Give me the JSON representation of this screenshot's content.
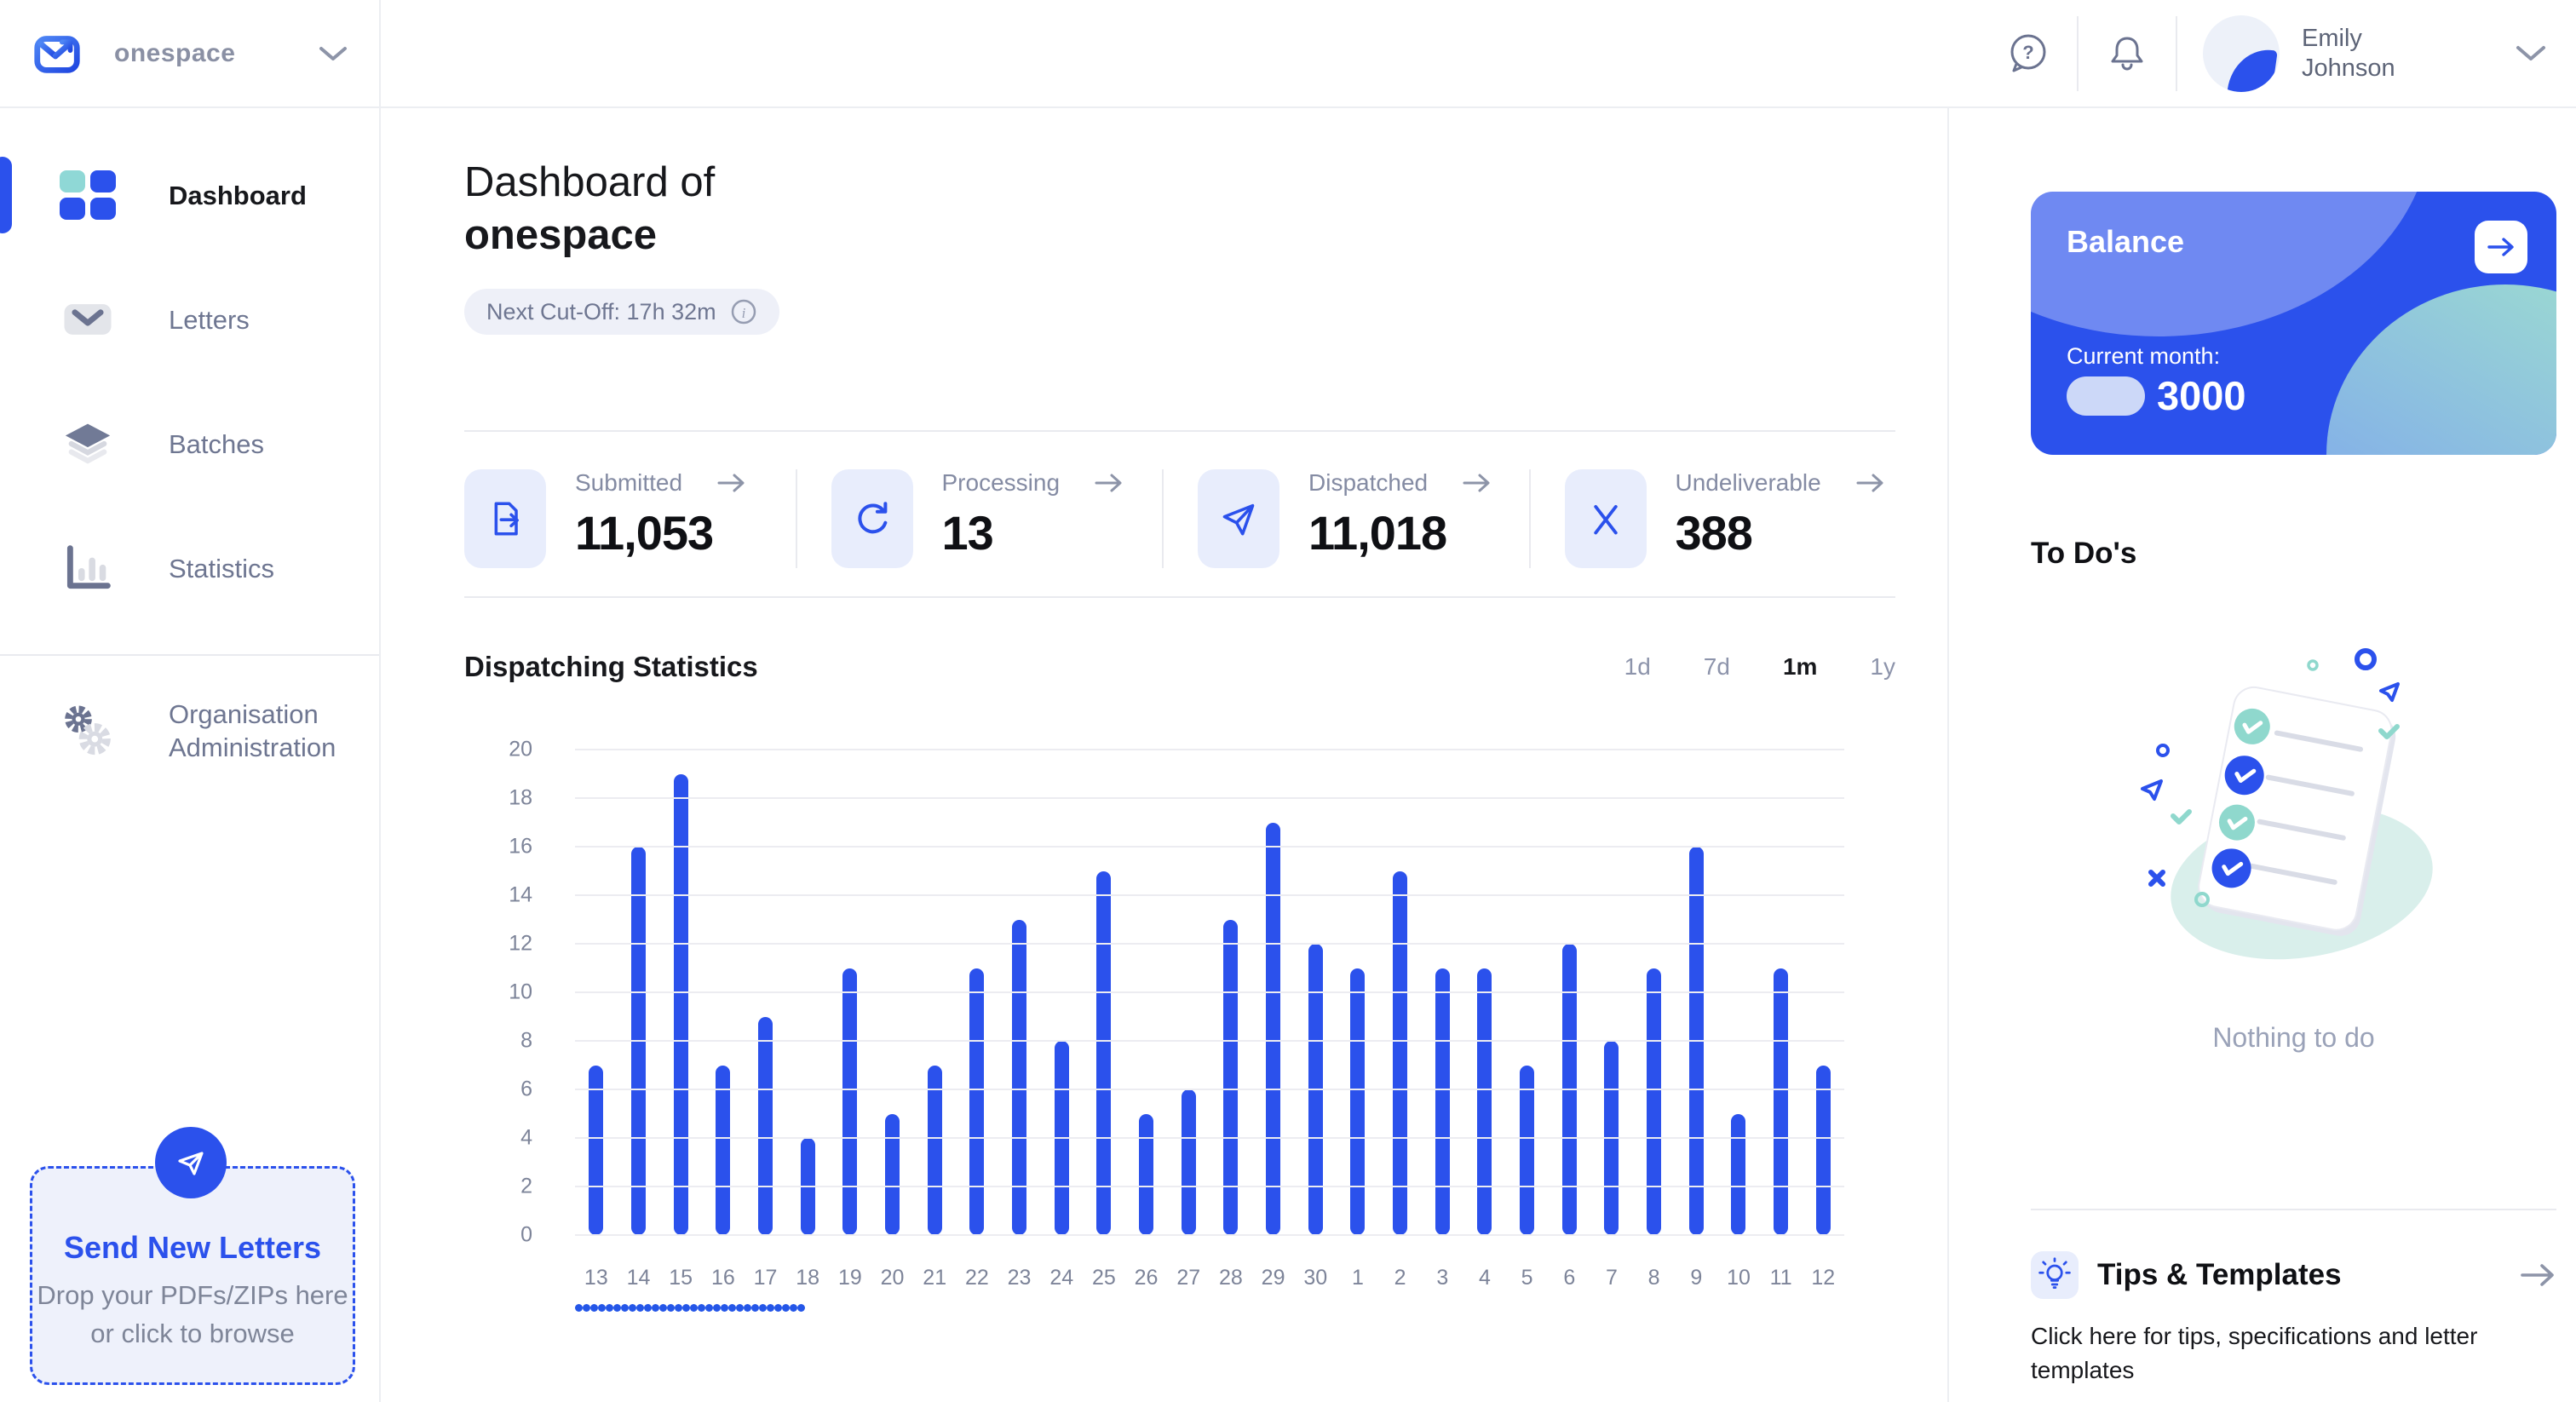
{
  "brand": {
    "name": "onespace"
  },
  "header": {
    "user_first": "Emily",
    "user_last": "Johnson"
  },
  "sidebar": {
    "items": [
      {
        "label": "Dashboard",
        "active": true
      },
      {
        "label": "Letters"
      },
      {
        "label": "Batches"
      },
      {
        "label": "Statistics"
      },
      {
        "label": "Organisation Administration"
      }
    ],
    "dropzone": {
      "title": "Send New Letters",
      "subtitle": "Drop your PDFs/ZIPs here or click to browse"
    }
  },
  "main": {
    "title_prefix": "Dashboard of",
    "title_org": "onespace",
    "cutoff_chip": "Next Cut-Off: 17h 32m",
    "stats": [
      {
        "label": "Submitted",
        "value": "11,053",
        "icon": "document-export-icon"
      },
      {
        "label": "Processing",
        "value": "13",
        "icon": "refresh-icon"
      },
      {
        "label": "Dispatched",
        "value": "11,018",
        "icon": "paper-plane-icon"
      },
      {
        "label": "Undeliverable",
        "value": "388",
        "icon": "x-icon"
      }
    ],
    "chart_title": "Dispatching Statistics",
    "range_tabs": [
      {
        "label": "1d"
      },
      {
        "label": "7d"
      },
      {
        "label": "1m",
        "active": true
      },
      {
        "label": "1y"
      }
    ]
  },
  "chart_data": {
    "type": "bar",
    "title": "Dispatching Statistics",
    "categories": [
      "13",
      "14",
      "15",
      "16",
      "17",
      "18",
      "19",
      "20",
      "21",
      "22",
      "23",
      "24",
      "25",
      "26",
      "27",
      "28",
      "29",
      "30",
      "1",
      "2",
      "3",
      "4",
      "5",
      "6",
      "7",
      "8",
      "9",
      "10",
      "11",
      "12"
    ],
    "values": [
      7,
      16,
      19,
      7,
      9,
      4,
      11,
      5,
      7,
      11,
      13,
      8,
      15,
      5,
      6,
      13,
      17,
      12,
      11,
      15,
      11,
      11,
      7,
      12,
      8,
      11,
      16,
      5,
      11,
      7
    ],
    "xlabel": "",
    "ylabel": "",
    "ylim": [
      0,
      20
    ],
    "ytick_step": 2,
    "grid": true,
    "legend": false,
    "bar_color": "#2B51EC"
  },
  "right_panel": {
    "balance": {
      "title": "Balance",
      "period_label": "Current month:",
      "amount": "3000"
    },
    "todos": {
      "title": "To Do's",
      "empty_text": "Nothing to do"
    },
    "tips": {
      "title": "Tips & Templates",
      "subtitle": "Click here for tips, specifications and letter templates"
    }
  },
  "colors": {
    "accent_blue": "#2B51EC",
    "teal": "#8FD8D6",
    "icon_bg": "#E8EDFC",
    "muted_text": "#6E7691",
    "border": "#E9EAEF"
  }
}
